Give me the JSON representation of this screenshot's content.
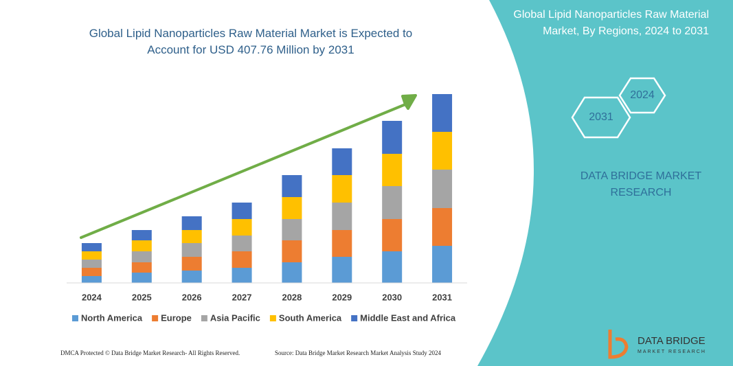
{
  "chart_data": {
    "type": "stacked-bar",
    "title": "Global Lipid Nanoparticles Raw Material Market is Expected to Account for USD 407.76 Million by 2031",
    "categories": [
      "2024",
      "2025",
      "2026",
      "2027",
      "2028",
      "2029",
      "2030",
      "2031"
    ],
    "series": [
      {
        "name": "North America",
        "color": "#5b9bd5",
        "values": [
          10,
          15,
          18,
          22,
          30,
          38,
          46,
          54
        ]
      },
      {
        "name": "Europe",
        "color": "#ed7d31",
        "values": [
          12,
          15,
          20,
          24,
          32,
          39,
          47,
          55
        ]
      },
      {
        "name": "Asia Pacific",
        "color": "#a5a5a5",
        "values": [
          12,
          16,
          20,
          23,
          31,
          40,
          48,
          56
        ]
      },
      {
        "name": "South America",
        "color": "#ffc000",
        "values": [
          12,
          16,
          19,
          24,
          32,
          40,
          47,
          55
        ]
      },
      {
        "name": "Middle East and Africa",
        "color": "#4472c4",
        "values": [
          12,
          15,
          20,
          24,
          32,
          39,
          48,
          55
        ]
      }
    ]
  },
  "panel": {
    "title": "Global Lipid Nanoparticles Raw Material Market, By Regions, 2024 to 2031",
    "hex_start": "2024",
    "hex_end": "2031",
    "brand": "DATA BRIDGE MARKET RESEARCH"
  },
  "logo": {
    "name": "DATA BRIDGE",
    "tagline": "MARKET RESEARCH"
  },
  "footer": {
    "left": "DMCA Protected © Data Bridge Market Research- All Rights Reserved.",
    "right": "Source: Data Bridge Market Research Market Analysis Study 2024"
  }
}
